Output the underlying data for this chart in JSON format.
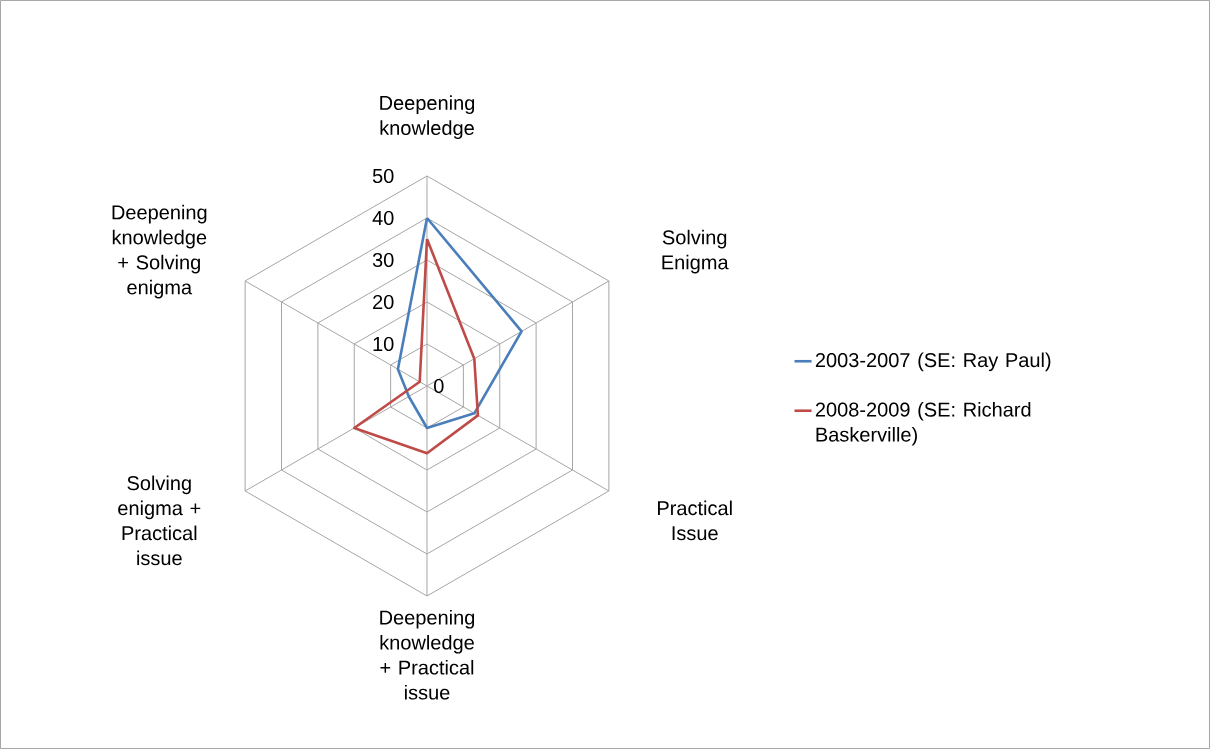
{
  "chart_data": {
    "type": "radar",
    "categories": [
      "Deepening knowledge",
      "Solving Enigma",
      "Practical Issue",
      "Deepening knowledge + Practical issue",
      "Solving enigma + Practical issue",
      "Deepening knowledge + Solving enigma"
    ],
    "series": [
      {
        "name": "2003-2007 (SE: Ray Paul)",
        "color": "#4a7ebb",
        "values": [
          40,
          26,
          13,
          10,
          5,
          8
        ]
      },
      {
        "name": "2008-2009 (SE: Richard Baskerville)",
        "color": "#be4b48",
        "values": [
          35,
          13,
          14,
          16,
          20,
          2
        ]
      }
    ],
    "ylim": [
      0,
      50
    ],
    "yticks": [
      0,
      10,
      20,
      30,
      40,
      50
    ],
    "grid": true,
    "legend": "right",
    "marker": "none",
    "line_style": "solid"
  }
}
